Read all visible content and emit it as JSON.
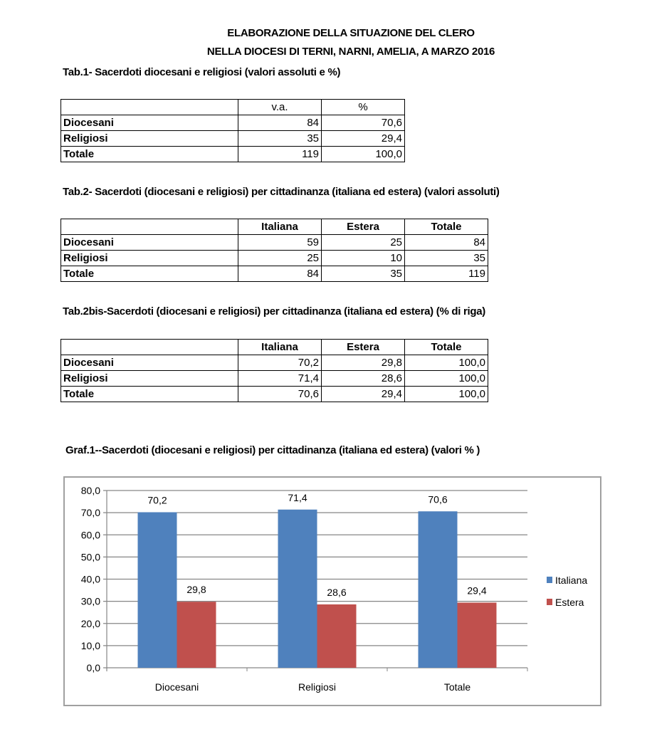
{
  "header": {
    "title_line1": "ELABORAZIONE DELLA SITUAZIONE DEL CLERO",
    "title_line2": "NELLA DIOCESI DI TERNI, NARNI, AMELIA, A MARZO 2016"
  },
  "tab1": {
    "title": "Tab.1- Sacerdoti diocesani e religiosi  (valori assoluti  e %)",
    "columns": [
      "",
      "v.a.",
      "%"
    ],
    "rows": [
      {
        "label": "Diocesani",
        "values": [
          "84",
          "70,6"
        ]
      },
      {
        "label": "Religiosi",
        "values": [
          "35",
          "29,4"
        ]
      },
      {
        "label": "Totale",
        "values": [
          "119",
          "100,0"
        ]
      }
    ]
  },
  "tab2": {
    "title": "Tab.2- Sacerdoti (diocesani e religiosi) per cittadinanza (italiana ed estera) (valori assoluti)",
    "columns": [
      "",
      "Italiana",
      "Estera",
      "Totale"
    ],
    "rows": [
      {
        "label": "Diocesani",
        "values": [
          "59",
          "25",
          "84"
        ]
      },
      {
        "label": "Religiosi",
        "values": [
          "25",
          "10",
          "35"
        ]
      },
      {
        "label": "Totale",
        "values": [
          "84",
          "35",
          "119"
        ]
      }
    ]
  },
  "tab2bis": {
    "title": "Tab.2bis-Sacerdoti (diocesani e religiosi) per cittadinanza (italiana ed estera) (% di riga)",
    "columns": [
      "",
      "Italiana",
      "Estera",
      "Totale"
    ],
    "rows": [
      {
        "label": "Diocesani",
        "values": [
          "70,2",
          "29,8",
          "100,0"
        ]
      },
      {
        "label": "Religiosi",
        "values": [
          "71,4",
          "28,6",
          "100,0"
        ]
      },
      {
        "label": "Totale",
        "values": [
          "70,6",
          "29,4",
          "100,0"
        ]
      }
    ]
  },
  "chart_data": {
    "type": "bar",
    "title": "Graf.1--Sacerdoti (diocesani e religiosi) per cittadinanza (italiana ed estera) (valori % )",
    "categories": [
      "Diocesani",
      "Religiosi",
      "Totale"
    ],
    "series": [
      {
        "name": "Italiana",
        "color": "#4f81bd",
        "values": [
          70.2,
          71.4,
          70.6
        ],
        "labels": [
          "70,2",
          "71,4",
          "70,6"
        ]
      },
      {
        "name": "Estera",
        "color": "#c0504d",
        "values": [
          29.8,
          28.6,
          29.4
        ],
        "labels": [
          "29,8",
          "28,6",
          "29,4"
        ]
      }
    ],
    "ylim": [
      0,
      80
    ],
    "yticks": [
      "0,0",
      "10,0",
      "20,0",
      "30,0",
      "40,0",
      "50,0",
      "60,0",
      "70,0",
      "80,0"
    ],
    "grid": true,
    "legend": "right",
    "xlabel": "",
    "ylabel": ""
  }
}
